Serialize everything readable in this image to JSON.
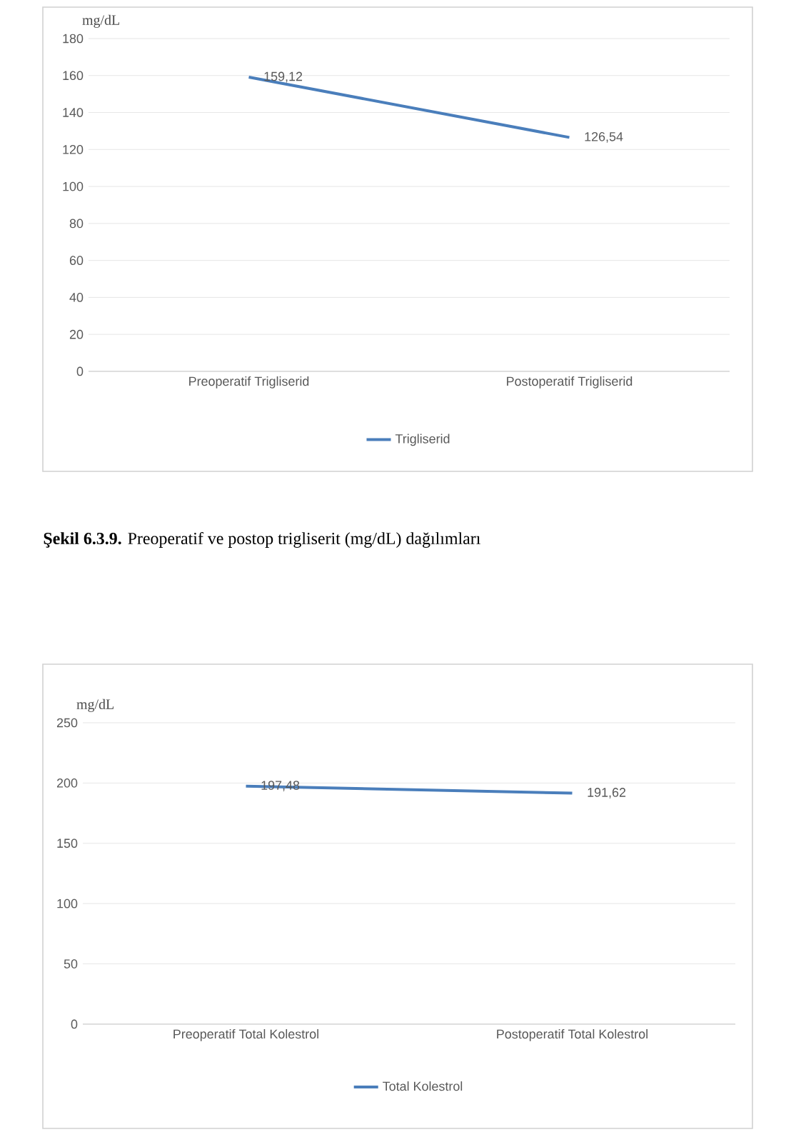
{
  "chart_data": [
    {
      "type": "line",
      "ylabel": "mg/dL",
      "categories": [
        "Preoperatif Trigliserid",
        "Postoperatif Trigliserid"
      ],
      "ylim": [
        0,
        180
      ],
      "yticks": [
        0,
        20,
        40,
        60,
        80,
        100,
        120,
        140,
        160,
        180
      ],
      "grid": "y",
      "legend": "bottom",
      "marker": "none",
      "line_style": "solid",
      "series": [
        {
          "name": "Trigliserid",
          "color": "#4a7ebb",
          "values": [
            159.12,
            126.54
          ],
          "value_labels": [
            "159,12",
            "126,54"
          ]
        }
      ],
      "annotations": [
        "**Şekil 6.3.9.** Preoperatif ve postop trigliserit (mg/dL) dağılımları"
      ]
    },
    {
      "type": "line",
      "ylabel": "mg/dL",
      "categories": [
        "Preoperatif Total Kolestrol",
        "Postoperatif Total Kolestrol"
      ],
      "ylim": [
        0,
        250
      ],
      "yticks": [
        0,
        50,
        100,
        150,
        200,
        250
      ],
      "grid": "y",
      "legend": "bottom",
      "marker": "none",
      "line_style": "solid",
      "series": [
        {
          "name": "Total Kolestrol",
          "color": "#4a7ebb",
          "values": [
            197.48,
            191.62
          ],
          "value_labels": [
            "197,48",
            "191,62"
          ]
        }
      ]
    }
  ]
}
